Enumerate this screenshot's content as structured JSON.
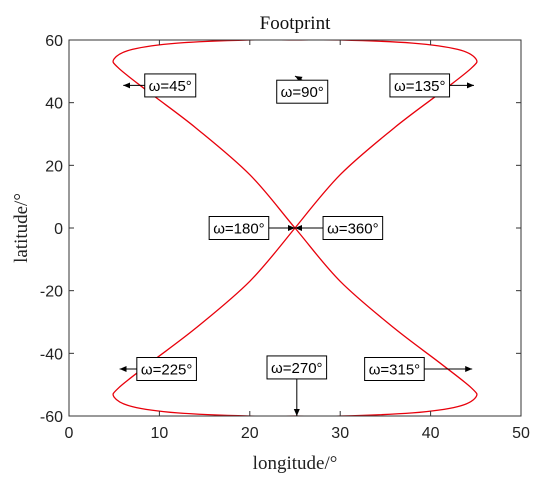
{
  "chart_data": {
    "type": "line",
    "title": "Footprint",
    "xlabel": "longitude/°",
    "ylabel": "latitude/°",
    "xlim": [
      0,
      50
    ],
    "ylim": [
      -60,
      60
    ],
    "xticks": [
      0,
      10,
      20,
      30,
      40,
      50
    ],
    "yticks": [
      -60,
      -40,
      -20,
      0,
      20,
      40,
      60
    ],
    "grid": false,
    "series": [
      {
        "color": "#e8000b",
        "points": [
          [
            25,
            0
          ],
          [
            30,
            17
          ],
          [
            36,
            32
          ],
          [
            41,
            43
          ],
          [
            44.5,
            51
          ],
          [
            45,
            54
          ],
          [
            43,
            57
          ],
          [
            38,
            59
          ],
          [
            30,
            60
          ],
          [
            25,
            60
          ],
          [
            20,
            60
          ],
          [
            12,
            59
          ],
          [
            7,
            57
          ],
          [
            5,
            54
          ],
          [
            5.5,
            51
          ],
          [
            9,
            43
          ],
          [
            14,
            32
          ],
          [
            20,
            17
          ],
          [
            25,
            0
          ],
          [
            30,
            -17
          ],
          [
            36,
            -32
          ],
          [
            41,
            -43
          ],
          [
            44.5,
            -51
          ],
          [
            45,
            -54
          ],
          [
            43,
            -57
          ],
          [
            38,
            -59
          ],
          [
            30,
            -60
          ],
          [
            25,
            -60
          ],
          [
            20,
            -60
          ],
          [
            12,
            -59
          ],
          [
            7,
            -57
          ],
          [
            5,
            -54
          ],
          [
            5.5,
            -51
          ],
          [
            9,
            -43
          ],
          [
            14,
            -32
          ],
          [
            20,
            -17
          ],
          [
            25,
            0
          ]
        ]
      }
    ],
    "annotations": [
      {
        "text": "ω=45°",
        "box": [
          11.2,
          45.5
        ],
        "tip": [
          6.0,
          45.5
        ]
      },
      {
        "text": "ω=90°",
        "box": [
          25.8,
          43.5
        ],
        "tip": [
          25.0,
          48.5
        ]
      },
      {
        "text": "ω=135°",
        "box": [
          38.8,
          45.5
        ],
        "tip": [
          44.8,
          45.5
        ]
      },
      {
        "text": "ω=180°",
        "box": [
          18.8,
          0.0
        ],
        "tip": [
          25.0,
          0.0
        ]
      },
      {
        "text": "ω=360°",
        "box": [
          31.4,
          0.0
        ],
        "tip": [
          25.0,
          0.0
        ]
      },
      {
        "text": "ω=225°",
        "box": [
          10.8,
          -45.0
        ],
        "tip": [
          5.6,
          -45.0
        ]
      },
      {
        "text": "ω=270°",
        "box": [
          25.2,
          -44.5
        ],
        "tip": [
          25.2,
          -60.0
        ]
      },
      {
        "text": "ω=315°",
        "box": [
          36.0,
          -45.0
        ],
        "tip": [
          44.6,
          -45.0
        ]
      }
    ]
  }
}
